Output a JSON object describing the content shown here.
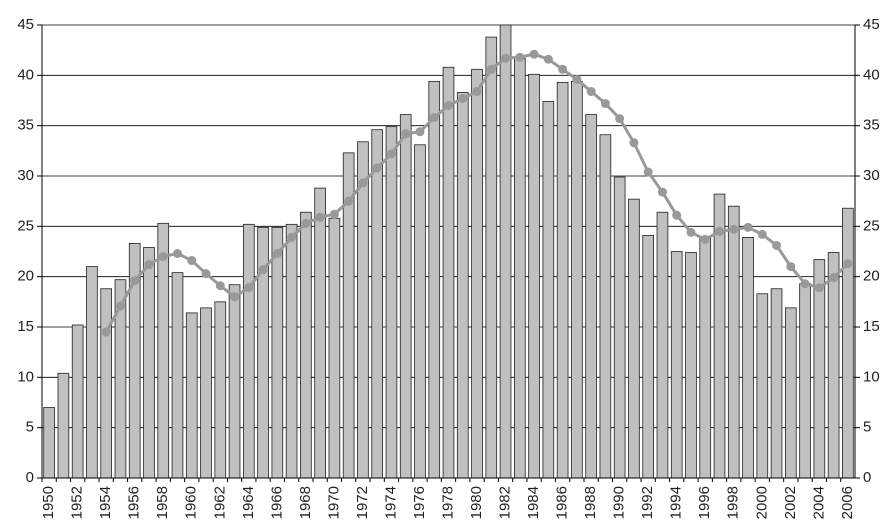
{
  "chart_data": {
    "type": "bar",
    "categories": [
      "1950",
      null,
      "1952",
      null,
      "1954",
      null,
      "1956",
      null,
      "1958",
      null,
      "1960",
      null,
      "1962",
      null,
      "1964",
      null,
      "1966",
      null,
      "1968",
      null,
      "1970",
      null,
      "1972",
      null,
      "1974",
      null,
      "1976",
      null,
      "1978",
      null,
      "1980",
      null,
      "1982",
      null,
      "1984",
      null,
      "1986",
      null,
      "1988",
      null,
      "1990",
      null,
      "1992",
      null,
      "1994",
      null,
      "1996",
      null,
      "1998",
      null,
      "2000",
      null,
      "2002",
      null,
      "2004",
      null,
      "2006"
    ],
    "series": [
      {
        "type": "bar",
        "color": "#c0c0c0",
        "values": [
          7.0,
          10.4,
          15.2,
          21.0,
          18.8,
          19.7,
          23.3,
          22.9,
          25.3,
          20.4,
          16.4,
          16.9,
          17.5,
          19.2,
          25.2,
          24.9,
          24.9,
          25.2,
          26.4,
          28.8,
          25.8,
          32.3,
          33.4,
          34.6,
          34.9,
          36.1,
          33.1,
          39.4,
          40.8,
          38.3,
          40.6,
          43.8,
          45.0,
          41.7,
          40.1,
          37.4,
          39.3,
          39.4,
          36.1,
          34.1,
          29.9,
          27.7,
          24.1,
          26.4,
          22.5,
          22.4,
          23.9,
          28.2,
          27.0,
          23.9,
          18.3,
          18.8,
          16.9,
          19.3,
          21.7,
          22.4,
          26.8
        ]
      },
      {
        "type": "line",
        "axis": "y2",
        "color": "#999999",
        "values": [
          null,
          null,
          null,
          null,
          14.5,
          17.1,
          19.6,
          21.2,
          22.0,
          22.3,
          21.6,
          20.3,
          19.1,
          18.0,
          18.9,
          20.7,
          22.3,
          23.9,
          25.3,
          25.9,
          26.2,
          27.5,
          29.3,
          30.8,
          32.2,
          34.2,
          34.4,
          35.8,
          37.0,
          37.7,
          38.4,
          40.6,
          41.7,
          41.8,
          42.1,
          41.6,
          40.6,
          39.6,
          38.4,
          37.2,
          35.7,
          33.3,
          30.4,
          28.4,
          26.1,
          24.4,
          23.7,
          24.5,
          24.7,
          24.9,
          24.2,
          23.1,
          21.0,
          19.3,
          18.9,
          19.9,
          21.3
        ]
      }
    ],
    "ylim": [
      0,
      45
    ],
    "yticks": [
      0,
      5,
      10,
      15,
      20,
      25,
      30,
      35,
      40,
      45
    ],
    "y2lim": [
      0,
      45
    ],
    "y2ticks": [
      0,
      5,
      10,
      15,
      20,
      25,
      30,
      35,
      40,
      45
    ],
    "grid": true
  }
}
